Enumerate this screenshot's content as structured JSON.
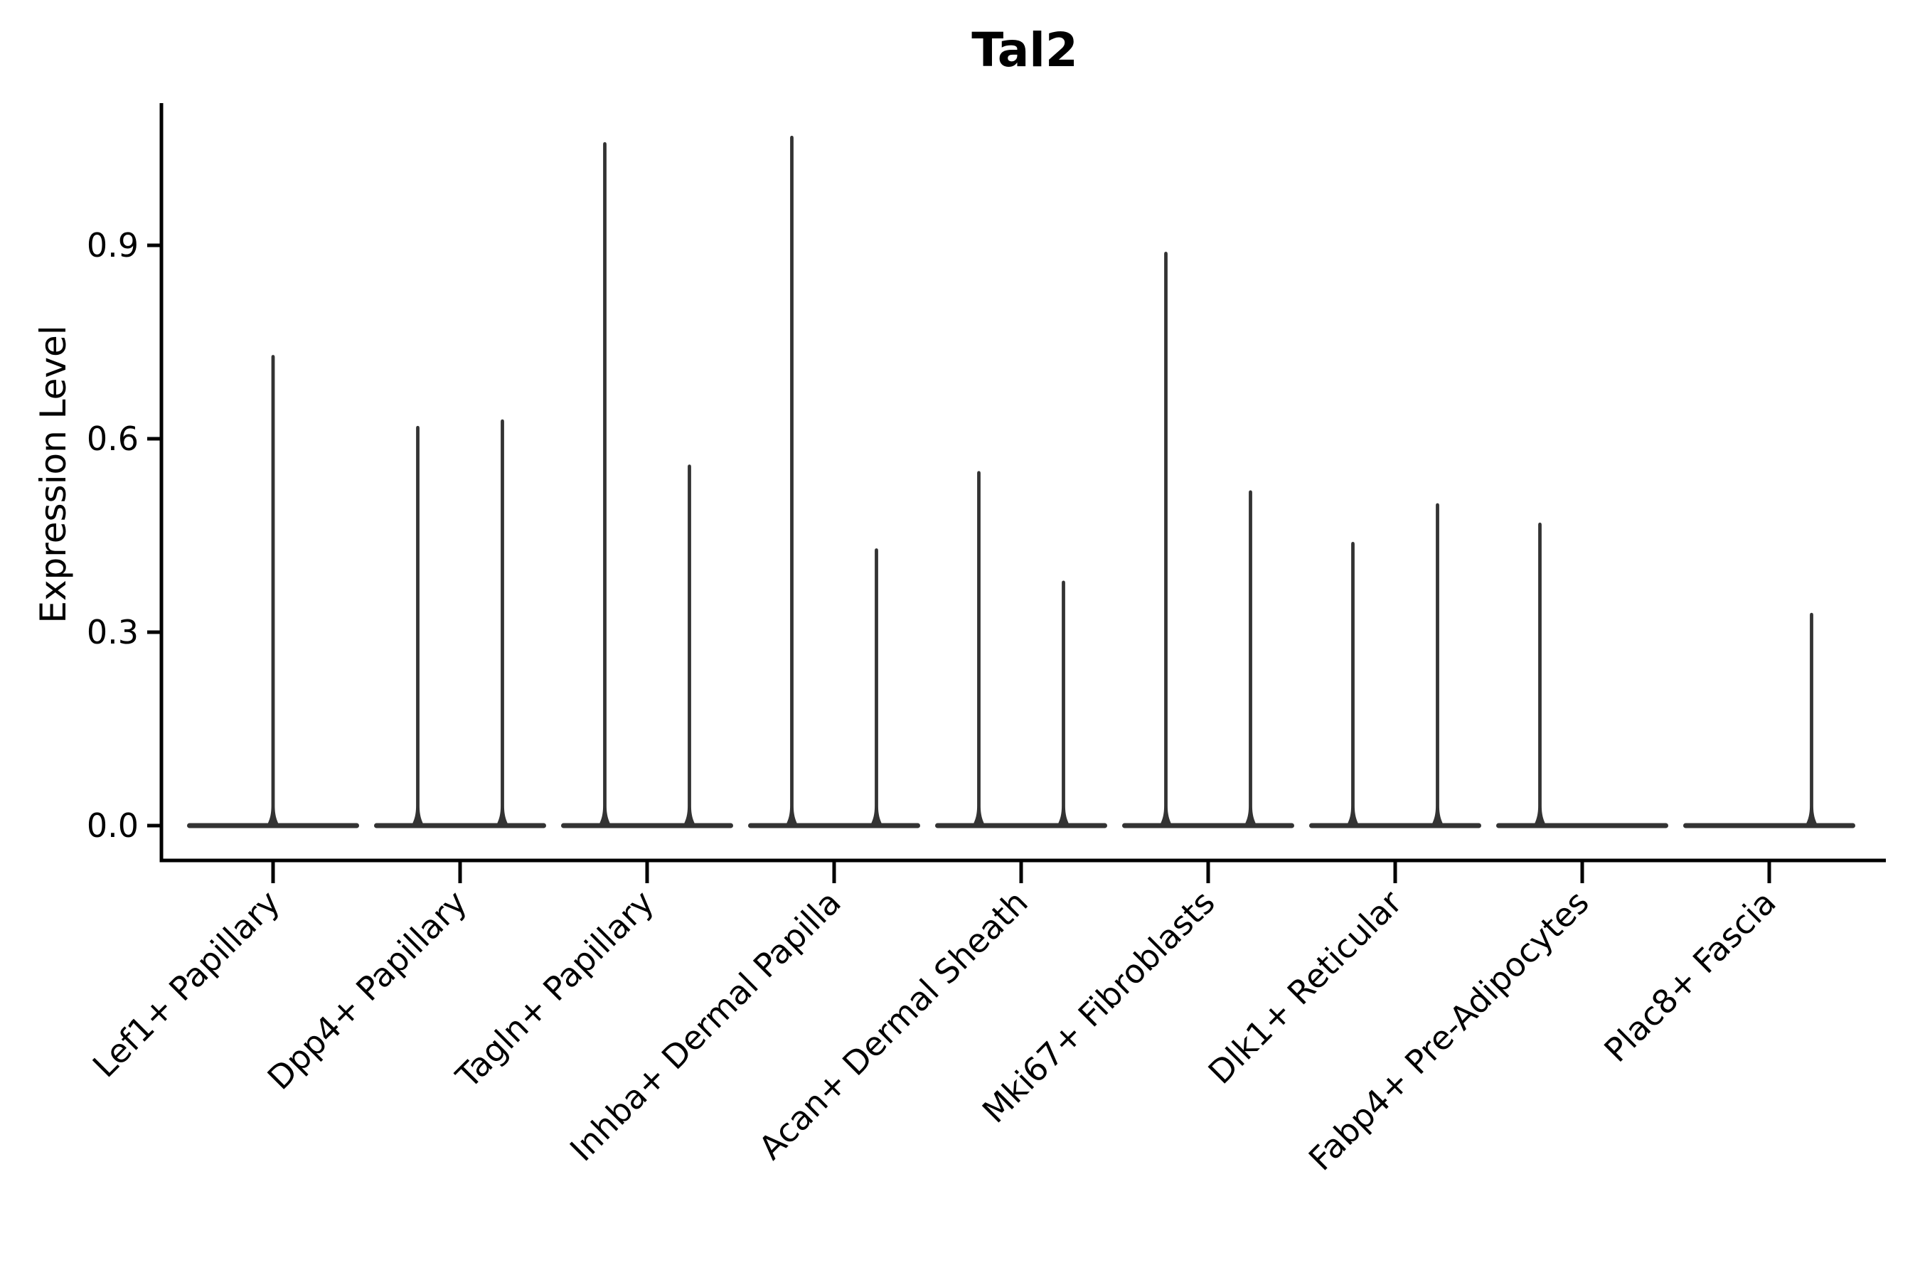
{
  "chart_data": {
    "type": "violin",
    "title": "Tal2",
    "xlabel": "",
    "ylabel": "Expression Level",
    "yticks": [
      0.0,
      0.3,
      0.6,
      0.9
    ],
    "ytick_labels": [
      "0.0",
      "0.3",
      "0.6",
      "0.9"
    ],
    "ylim": [
      -0.054,
      1.12
    ],
    "grid": false,
    "legend": "none",
    "categories": [
      "Lef1+ Papillary",
      "Dpp4+ Papillary",
      "Tagln+ Papillary",
      "Inhba+ Dermal Papilla",
      "Acan+ Dermal Sheath",
      "Mki67+ Fibroblasts",
      "Dlk1+ Reticular",
      "Fabp4+ Pre-Adipocytes",
      "Plac8+ Fascia"
    ],
    "description": "Violin plot of Tal2 expression; each violin is a flat mass at 0 with a thin density spike up to the maximum expression value.",
    "violins": [
      {
        "category_index": 0,
        "category": "Lef1+ Papillary",
        "group": "center",
        "max_expression": 0.73
      },
      {
        "category_index": 1,
        "category": "Dpp4+ Papillary",
        "group": "left",
        "max_expression": 0.62
      },
      {
        "category_index": 1,
        "category": "Dpp4+ Papillary",
        "group": "right",
        "max_expression": 0.63
      },
      {
        "category_index": 2,
        "category": "Tagln+ Papillary",
        "group": "left",
        "max_expression": 1.06
      },
      {
        "category_index": 2,
        "category": "Tagln+ Papillary",
        "group": "right",
        "max_expression": 0.56
      },
      {
        "category_index": 3,
        "category": "Inhba+ Dermal Papilla",
        "group": "left",
        "max_expression": 1.07
      },
      {
        "category_index": 3,
        "category": "Inhba+ Dermal Papilla",
        "group": "right",
        "max_expression": 0.43
      },
      {
        "category_index": 4,
        "category": "Acan+ Dermal Sheath",
        "group": "left",
        "max_expression": 0.55
      },
      {
        "category_index": 4,
        "category": "Acan+ Dermal Sheath",
        "group": "right",
        "max_expression": 0.38
      },
      {
        "category_index": 5,
        "category": "Mki67+ Fibroblasts",
        "group": "left",
        "max_expression": 0.89
      },
      {
        "category_index": 5,
        "category": "Mki67+ Fibroblasts",
        "group": "right",
        "max_expression": 0.52
      },
      {
        "category_index": 6,
        "category": "Dlk1+ Reticular",
        "group": "left",
        "max_expression": 0.44
      },
      {
        "category_index": 6,
        "category": "Dlk1+ Reticular",
        "group": "right",
        "max_expression": 0.5
      },
      {
        "category_index": 7,
        "category": "Fabp4+ Pre-Adipocytes",
        "group": "left",
        "max_expression": 0.47
      },
      {
        "category_index": 8,
        "category": "Plac8+ Fascia",
        "group": "right",
        "max_expression": 0.33
      }
    ],
    "colors": {
      "violin": "#333333",
      "axis": "#000000",
      "text": "#000000",
      "background": "#ffffff"
    }
  }
}
